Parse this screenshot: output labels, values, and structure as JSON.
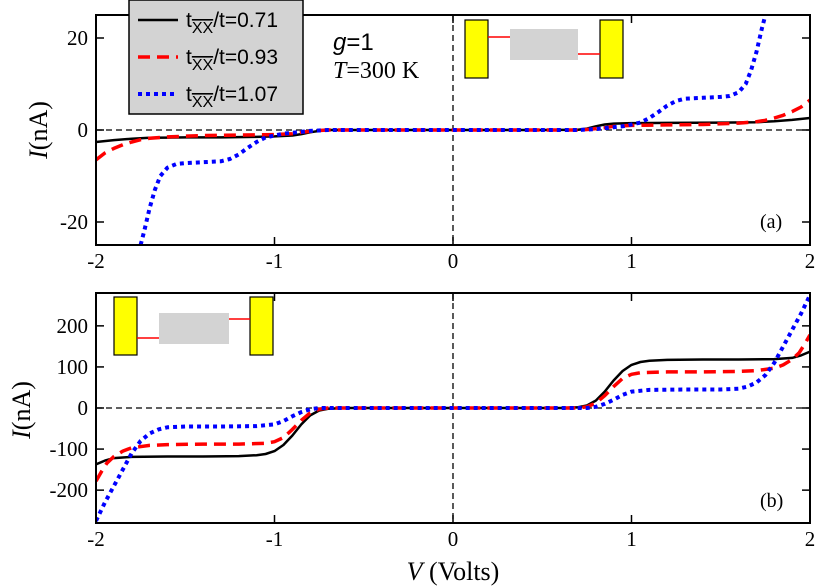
{
  "chart_data": [
    {
      "panel": "a",
      "type": "line",
      "panel_label": "(a)",
      "xlabel_italic": "V",
      "xlabel_rest": " (Volts)",
      "ylabel_italic": "I",
      "ylabel_rest": "(nA)",
      "xlim": [
        -2,
        2
      ],
      "ylim": [
        -25,
        25
      ],
      "xticks": [
        -2,
        -1,
        0,
        1,
        2
      ],
      "yticks": [
        -20,
        0,
        20
      ],
      "legend": {
        "placement": "top-left",
        "entries": [
          {
            "prefix": "t",
            "sub": "XX",
            "suffix": "/t=0.71",
            "style": "solid",
            "color": "#000000"
          },
          {
            "prefix": "t",
            "sub": "XX",
            "suffix": "/t=0.93",
            "style": "dashed",
            "color": "#ff0000"
          },
          {
            "prefix": "t",
            "sub": "XX",
            "suffix": "/t=1.07",
            "style": "dotted",
            "color": "#0000ff"
          }
        ]
      },
      "annotation": {
        "g_text": "g",
        "g_value": "=1",
        "T_text": "T",
        "T_value": "=300 K"
      },
      "inset": "yellow electrodes with grey molecule, asymmetric coupling (top)",
      "series": [
        {
          "name": "tXX/t=0.71",
          "color": "#000000",
          "style": "solid",
          "points": [
            [
              -2,
              -2.6
            ],
            [
              -1.9,
              -2.2
            ],
            [
              -1.8,
              -1.9
            ],
            [
              -1.7,
              -1.7
            ],
            [
              -1.6,
              -1.65
            ],
            [
              -1.5,
              -1.6
            ],
            [
              -1.3,
              -1.6
            ],
            [
              -1.1,
              -1.5
            ],
            [
              -1.0,
              -1.4
            ],
            [
              -0.9,
              -1.2
            ],
            [
              -0.85,
              -0.9
            ],
            [
              -0.8,
              -0.5
            ],
            [
              -0.75,
              -0.2
            ],
            [
              -0.7,
              0
            ],
            [
              -0.5,
              0
            ],
            [
              0,
              0
            ],
            [
              0.5,
              0
            ],
            [
              0.7,
              0.05
            ],
            [
              0.75,
              0.3
            ],
            [
              0.8,
              0.8
            ],
            [
              0.85,
              1.2
            ],
            [
              0.9,
              1.4
            ],
            [
              1.0,
              1.5
            ],
            [
              1.2,
              1.55
            ],
            [
              1.5,
              1.6
            ],
            [
              1.7,
              1.7
            ],
            [
              1.8,
              1.9
            ],
            [
              1.9,
              2.2
            ],
            [
              2.0,
              2.6
            ]
          ]
        },
        {
          "name": "tXX/t=0.93",
          "color": "#ff0000",
          "style": "dashed",
          "points": [
            [
              -2,
              -6.5
            ],
            [
              -1.95,
              -5.0
            ],
            [
              -1.9,
              -4.0
            ],
            [
              -1.85,
              -3.2
            ],
            [
              -1.8,
              -2.6
            ],
            [
              -1.75,
              -2.1
            ],
            [
              -1.7,
              -1.8
            ],
            [
              -1.6,
              -1.5
            ],
            [
              -1.4,
              -1.2
            ],
            [
              -1.2,
              -1.1
            ],
            [
              -1.0,
              -1.0
            ],
            [
              -0.9,
              -0.8
            ],
            [
              -0.85,
              -0.5
            ],
            [
              -0.8,
              -0.3
            ],
            [
              -0.75,
              -0.1
            ],
            [
              -0.7,
              0
            ],
            [
              0,
              0
            ],
            [
              0.7,
              0
            ],
            [
              0.75,
              0.1
            ],
            [
              0.8,
              0.3
            ],
            [
              0.85,
              0.5
            ],
            [
              0.9,
              0.8
            ],
            [
              1.0,
              1.0
            ],
            [
              1.2,
              1.1
            ],
            [
              1.4,
              1.2
            ],
            [
              1.6,
              1.5
            ],
            [
              1.7,
              1.8
            ],
            [
              1.75,
              2.1
            ],
            [
              1.8,
              2.6
            ],
            [
              1.85,
              3.2
            ],
            [
              1.9,
              4.0
            ],
            [
              1.95,
              5.0
            ],
            [
              2.0,
              6.5
            ]
          ]
        },
        {
          "name": "tXX/t=1.07",
          "color": "#0000ff",
          "style": "dotted",
          "points": [
            [
              -1.75,
              -25
            ],
            [
              -1.73,
              -22
            ],
            [
              -1.7,
              -17
            ],
            [
              -1.67,
              -13
            ],
            [
              -1.64,
              -10
            ],
            [
              -1.6,
              -8.2
            ],
            [
              -1.55,
              -7.4
            ],
            [
              -1.5,
              -7.2
            ],
            [
              -1.4,
              -7.0
            ],
            [
              -1.3,
              -6.8
            ],
            [
              -1.25,
              -6.3
            ],
            [
              -1.2,
              -5.3
            ],
            [
              -1.15,
              -3.9
            ],
            [
              -1.1,
              -2.6
            ],
            [
              -1.05,
              -1.6
            ],
            [
              -1.0,
              -1.2
            ],
            [
              -0.95,
              -0.8
            ],
            [
              -0.9,
              -0.6
            ],
            [
              -0.8,
              -0.2
            ],
            [
              -0.7,
              0
            ],
            [
              0,
              0
            ],
            [
              0.7,
              0
            ],
            [
              0.8,
              0.2
            ],
            [
              0.9,
              0.6
            ],
            [
              0.95,
              0.8
            ],
            [
              1.0,
              1.2
            ],
            [
              1.05,
              1.6
            ],
            [
              1.1,
              2.6
            ],
            [
              1.15,
              3.9
            ],
            [
              1.2,
              5.3
            ],
            [
              1.25,
              6.3
            ],
            [
              1.3,
              6.8
            ],
            [
              1.4,
              7.0
            ],
            [
              1.5,
              7.2
            ],
            [
              1.55,
              7.4
            ],
            [
              1.6,
              8.2
            ],
            [
              1.64,
              10
            ],
            [
              1.67,
              13
            ],
            [
              1.7,
              17
            ],
            [
              1.73,
              22
            ],
            [
              1.75,
              25
            ]
          ]
        }
      ]
    },
    {
      "panel": "b",
      "type": "line",
      "panel_label": "(b)",
      "xlabel_italic": "V",
      "xlabel_rest": " (Volts)",
      "ylabel_italic": "I",
      "ylabel_rest": "(nA)",
      "xlim": [
        -2,
        2
      ],
      "ylim": [
        -280,
        280
      ],
      "xticks": [
        -2,
        -1,
        0,
        1,
        2
      ],
      "yticks": [
        -200,
        -100,
        0,
        100,
        200
      ],
      "inset": "yellow electrodes with grey molecule, asymmetric coupling (bottom)",
      "series": [
        {
          "name": "tXX/t=0.71",
          "color": "#000000",
          "style": "solid",
          "points": [
            [
              -2,
              -137
            ],
            [
              -1.95,
              -128
            ],
            [
              -1.9,
              -122
            ],
            [
              -1.8,
              -119
            ],
            [
              -1.6,
              -118
            ],
            [
              -1.4,
              -118
            ],
            [
              -1.2,
              -117
            ],
            [
              -1.1,
              -115
            ],
            [
              -1.05,
              -112
            ],
            [
              -1.0,
              -105
            ],
            [
              -0.95,
              -90
            ],
            [
              -0.9,
              -67
            ],
            [
              -0.85,
              -40
            ],
            [
              -0.8,
              -18
            ],
            [
              -0.75,
              -6
            ],
            [
              -0.7,
              -2
            ],
            [
              -0.6,
              0
            ],
            [
              0,
              0
            ],
            [
              0.6,
              0
            ],
            [
              0.7,
              2
            ],
            [
              0.75,
              6
            ],
            [
              0.8,
              18
            ],
            [
              0.85,
              40
            ],
            [
              0.9,
              67
            ],
            [
              0.95,
              90
            ],
            [
              1.0,
              105
            ],
            [
              1.05,
              112
            ],
            [
              1.1,
              115
            ],
            [
              1.2,
              117
            ],
            [
              1.4,
              118
            ],
            [
              1.6,
              118
            ],
            [
              1.8,
              119
            ],
            [
              1.9,
              122
            ],
            [
              1.95,
              128
            ],
            [
              2.0,
              137
            ]
          ]
        },
        {
          "name": "tXX/t=0.93",
          "color": "#ff0000",
          "style": "dashed",
          "points": [
            [
              -2,
              -178
            ],
            [
              -1.97,
              -155
            ],
            [
              -1.94,
              -135
            ],
            [
              -1.9,
              -118
            ],
            [
              -1.85,
              -105
            ],
            [
              -1.8,
              -97
            ],
            [
              -1.7,
              -91
            ],
            [
              -1.6,
              -89
            ],
            [
              -1.4,
              -88
            ],
            [
              -1.2,
              -88
            ],
            [
              -1.05,
              -86
            ],
            [
              -1.0,
              -82
            ],
            [
              -0.95,
              -72
            ],
            [
              -0.9,
              -52
            ],
            [
              -0.85,
              -30
            ],
            [
              -0.8,
              -12
            ],
            [
              -0.75,
              -3
            ],
            [
              -0.7,
              0
            ],
            [
              0,
              0
            ],
            [
              0.7,
              0
            ],
            [
              0.75,
              3
            ],
            [
              0.8,
              12
            ],
            [
              0.85,
              30
            ],
            [
              0.9,
              52
            ],
            [
              0.95,
              72
            ],
            [
              1.0,
              82
            ],
            [
              1.05,
              86
            ],
            [
              1.2,
              88
            ],
            [
              1.4,
              88
            ],
            [
              1.6,
              89
            ],
            [
              1.7,
              91
            ],
            [
              1.8,
              97
            ],
            [
              1.85,
              105
            ],
            [
              1.9,
              118
            ],
            [
              1.94,
              135
            ],
            [
              1.97,
              155
            ],
            [
              2.0,
              178
            ]
          ]
        },
        {
          "name": "tXX/t=1.07",
          "color": "#0000ff",
          "style": "dotted",
          "points": [
            [
              -2,
              -275
            ],
            [
              -1.95,
              -230
            ],
            [
              -1.9,
              -190
            ],
            [
              -1.85,
              -150
            ],
            [
              -1.8,
              -110
            ],
            [
              -1.75,
              -80
            ],
            [
              -1.7,
              -62
            ],
            [
              -1.65,
              -52
            ],
            [
              -1.6,
              -47
            ],
            [
              -1.5,
              -45
            ],
            [
              -1.3,
              -45
            ],
            [
              -1.1,
              -44
            ],
            [
              -1.0,
              -40
            ],
            [
              -0.95,
              -32
            ],
            [
              -0.9,
              -20
            ],
            [
              -0.85,
              -10
            ],
            [
              -0.8,
              -3
            ],
            [
              -0.75,
              0
            ],
            [
              0,
              0
            ],
            [
              0.75,
              0
            ],
            [
              0.8,
              3
            ],
            [
              0.85,
              10
            ],
            [
              0.9,
              20
            ],
            [
              0.95,
              32
            ],
            [
              1.0,
              40
            ],
            [
              1.1,
              44
            ],
            [
              1.3,
              45
            ],
            [
              1.5,
              45
            ],
            [
              1.6,
              47
            ],
            [
              1.65,
              52
            ],
            [
              1.7,
              62
            ],
            [
              1.75,
              80
            ],
            [
              1.8,
              110
            ],
            [
              1.85,
              150
            ],
            [
              1.9,
              190
            ],
            [
              1.95,
              230
            ],
            [
              2.0,
              275
            ]
          ]
        }
      ]
    }
  ]
}
